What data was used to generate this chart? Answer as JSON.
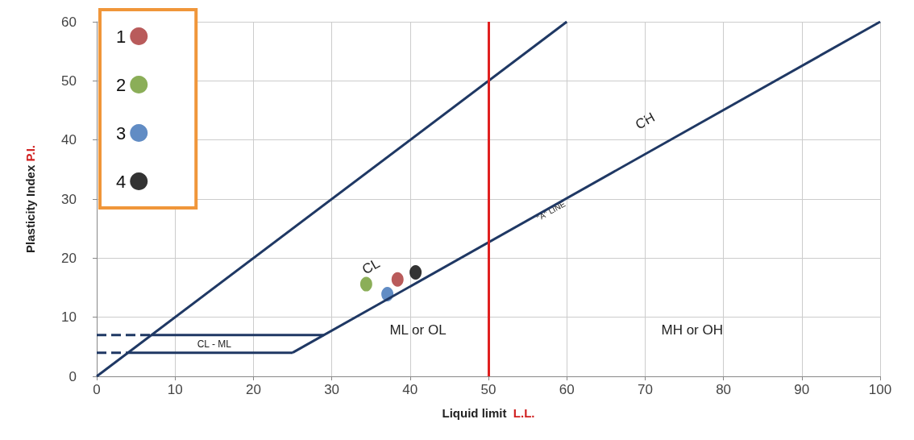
{
  "chart_data": {
    "type": "scatter",
    "xlabel": "Liquid limit  L.L.",
    "ylabel": "Plasticity Index P.I.",
    "xlim": [
      0,
      100
    ],
    "xticks": [
      0,
      10,
      20,
      30,
      40,
      50,
      60,
      70,
      80,
      90,
      100
    ],
    "ylim": [
      0,
      60
    ],
    "yticks": [
      0,
      10,
      20,
      30,
      40,
      50,
      60
    ],
    "grid": true,
    "legend": "top left",
    "marker": "circle",
    "series": [
      {
        "name": "1",
        "color": "#a83232",
        "x": [
          38.4
        ],
        "values": [
          16.4
        ]
      },
      {
        "name": "2",
        "color": "#6e9a2e",
        "x": [
          34.4
        ],
        "values": [
          15.6
        ]
      },
      {
        "name": "3",
        "color": "#3a6fb5",
        "x": [
          37.1
        ],
        "values": [
          13.9
        ]
      },
      {
        "name": "4",
        "color": "#000000",
        "x": [
          40.7
        ],
        "values": [
          17.6
        ]
      },
      {
        "type": "line",
        "color": "#1f3864",
        "marker": "none",
        "line_style": "solid",
        "x": [
          0,
          60
        ],
        "values": [
          0,
          60
        ]
      },
      {
        "type": "line",
        "color": "#1f3864",
        "marker": "none",
        "line_style": "solid",
        "x": [
          25,
          100
        ],
        "values": [
          4,
          60
        ]
      },
      {
        "type": "line",
        "color": "#1f3864",
        "marker": "none",
        "line_style": "solid",
        "x": [
          7,
          29
        ],
        "values": [
          7,
          7
        ]
      },
      {
        "type": "line",
        "color": "#1f3864",
        "marker": "none",
        "line_style": "solid",
        "x": [
          4,
          25
        ],
        "values": [
          4,
          4
        ]
      },
      {
        "type": "line",
        "color": "#1f3864",
        "marker": "none",
        "line_style": "dashed",
        "x": [
          0,
          7
        ],
        "values": [
          7,
          7
        ]
      },
      {
        "type": "line",
        "color": "#1f3864",
        "marker": "none",
        "line_style": "dashed",
        "x": [
          0,
          4
        ],
        "values": [
          4,
          4
        ]
      }
    ],
    "ref_lines": [
      {
        "axis": "x",
        "value": 50,
        "color": "#e02020"
      }
    ],
    "annotations": [
      "CH",
      {
        "text": "\"A\" LINE",
        "x": 58,
        "y": 28
      },
      "CL",
      "ML or OL",
      "MH or OH",
      "CL - ML"
    ]
  }
}
